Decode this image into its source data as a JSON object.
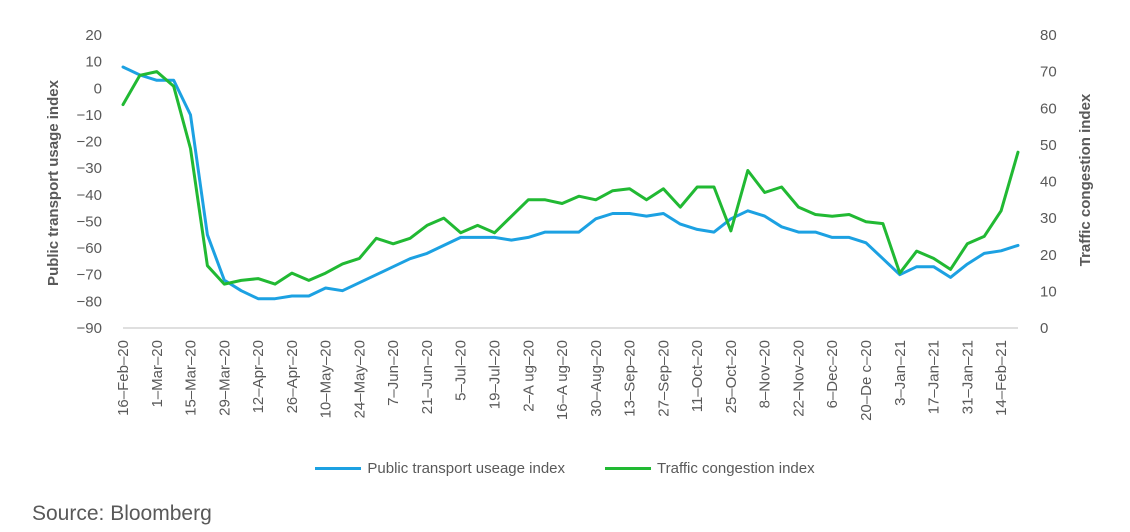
{
  "chart_data": {
    "type": "line",
    "x": [
      "16-Feb-20",
      "23-Feb-20",
      "1-Mar-20",
      "8-Mar-20",
      "15-Mar-20",
      "22-Mar-20",
      "29-Mar-20",
      "5-Apr-20",
      "12-Apr-20",
      "19-Apr-20",
      "26-Apr-20",
      "3-May-20",
      "10-May-20",
      "17-May-20",
      "24-May-20",
      "31-May-20",
      "7-Jun-20",
      "14-Jun-20",
      "21-Jun-20",
      "28-Jun-20",
      "5-Jul-20",
      "12-Jul-20",
      "19-Jul-20",
      "26-Jul-20",
      "2-Aug-20",
      "9-Aug-20",
      "16-Aug-20",
      "23-Aug-20",
      "30-Aug-20",
      "6-Sep-20",
      "13-Sep-20",
      "20-Sep-20",
      "27-Sep-20",
      "4-Oct-20",
      "11-Oct-20",
      "18-Oct-20",
      "25-Oct-20",
      "1-Nov-20",
      "8-Nov-20",
      "15-Nov-20",
      "22-Nov-20",
      "29-Nov-20",
      "6-Dec-20",
      "13-Dec-20",
      "20-Dec-20",
      "27-Dec-20",
      "3-Jan-21",
      "10-Jan-21",
      "17-Jan-21",
      "24-Jan-21",
      "31-Jan-21",
      "7-Feb-21",
      "14-Feb-21",
      "21-Feb-21"
    ],
    "x_tick_labels": [
      "16-Feb-20",
      "1-Mar-20",
      "15-Mar-20",
      "29-Mar-20",
      "12-Apr-20",
      "26-Apr-20",
      "10-May-20",
      "24-May-20",
      "7-Jun-20",
      "21-Jun-20",
      "5-Jul-20",
      "19-Jul-20",
      "2-A ug-20",
      "16-A ug-20",
      "30-Aug-20",
      "13-Sep-20",
      "27-Sep-20",
      "11-Oct-20",
      "25-Oct-20",
      "8-Nov-20",
      "22-Nov-20",
      "6-Dec-20",
      "20-De c-20",
      "3-Jan-21",
      "17-Jan-21",
      "31-Jan-21",
      "14-Feb-21"
    ],
    "y_left": {
      "label": "Public transport usage index",
      "ticks": [
        20,
        10,
        0,
        -10,
        -20,
        -30,
        -40,
        -50,
        -60,
        -70,
        -80,
        -90
      ],
      "ylim": [
        -90,
        20
      ]
    },
    "y_right": {
      "label": "Traffic congestion index",
      "ticks": [
        80,
        70,
        60,
        50,
        40,
        30,
        20,
        10,
        0
      ],
      "ylim": [
        0,
        80
      ]
    },
    "series": [
      {
        "name": "Public transport useage index",
        "axis": "left",
        "color": "#1ca1e2",
        "values": [
          8,
          5,
          3,
          3,
          -10,
          -55,
          -72,
          -76,
          -79,
          -79,
          -78,
          -78,
          -75,
          -76,
          -73,
          -70,
          -67,
          -64,
          -62,
          -59,
          -56,
          -56,
          -56,
          -57,
          -56,
          -54,
          -54,
          -54,
          -49,
          -47,
          -47,
          -48,
          -47,
          -51,
          -53,
          -54,
          -49,
          -46,
          -48,
          -52,
          -54,
          -54,
          -56,
          -56,
          -58,
          -64,
          -70,
          -67,
          -67,
          -71,
          -66,
          -62,
          -61,
          -59
        ]
      },
      {
        "name": "Traffic congestion index",
        "axis": "right",
        "color": "#21b933",
        "values": [
          61,
          69,
          70,
          66,
          49,
          17,
          12,
          13,
          13.5,
          12,
          15,
          13,
          15,
          17.5,
          19,
          24.5,
          23,
          24.5,
          28,
          30,
          26,
          28,
          26,
          30.5,
          35,
          35,
          34,
          36,
          35,
          37.5,
          38,
          35,
          38,
          33,
          38.5,
          38.5,
          26.5,
          43,
          37,
          38.5,
          33,
          31,
          30.5,
          31,
          29,
          28.5,
          15,
          21,
          19,
          16,
          23,
          25,
          32,
          48
        ]
      }
    ]
  },
  "legend": {
    "items": [
      {
        "label": "Public transport useage index",
        "color": "#1ca1e2"
      },
      {
        "label": "Traffic congestion index",
        "color": "#21b933"
      }
    ]
  },
  "source": "Source: Bloomberg"
}
